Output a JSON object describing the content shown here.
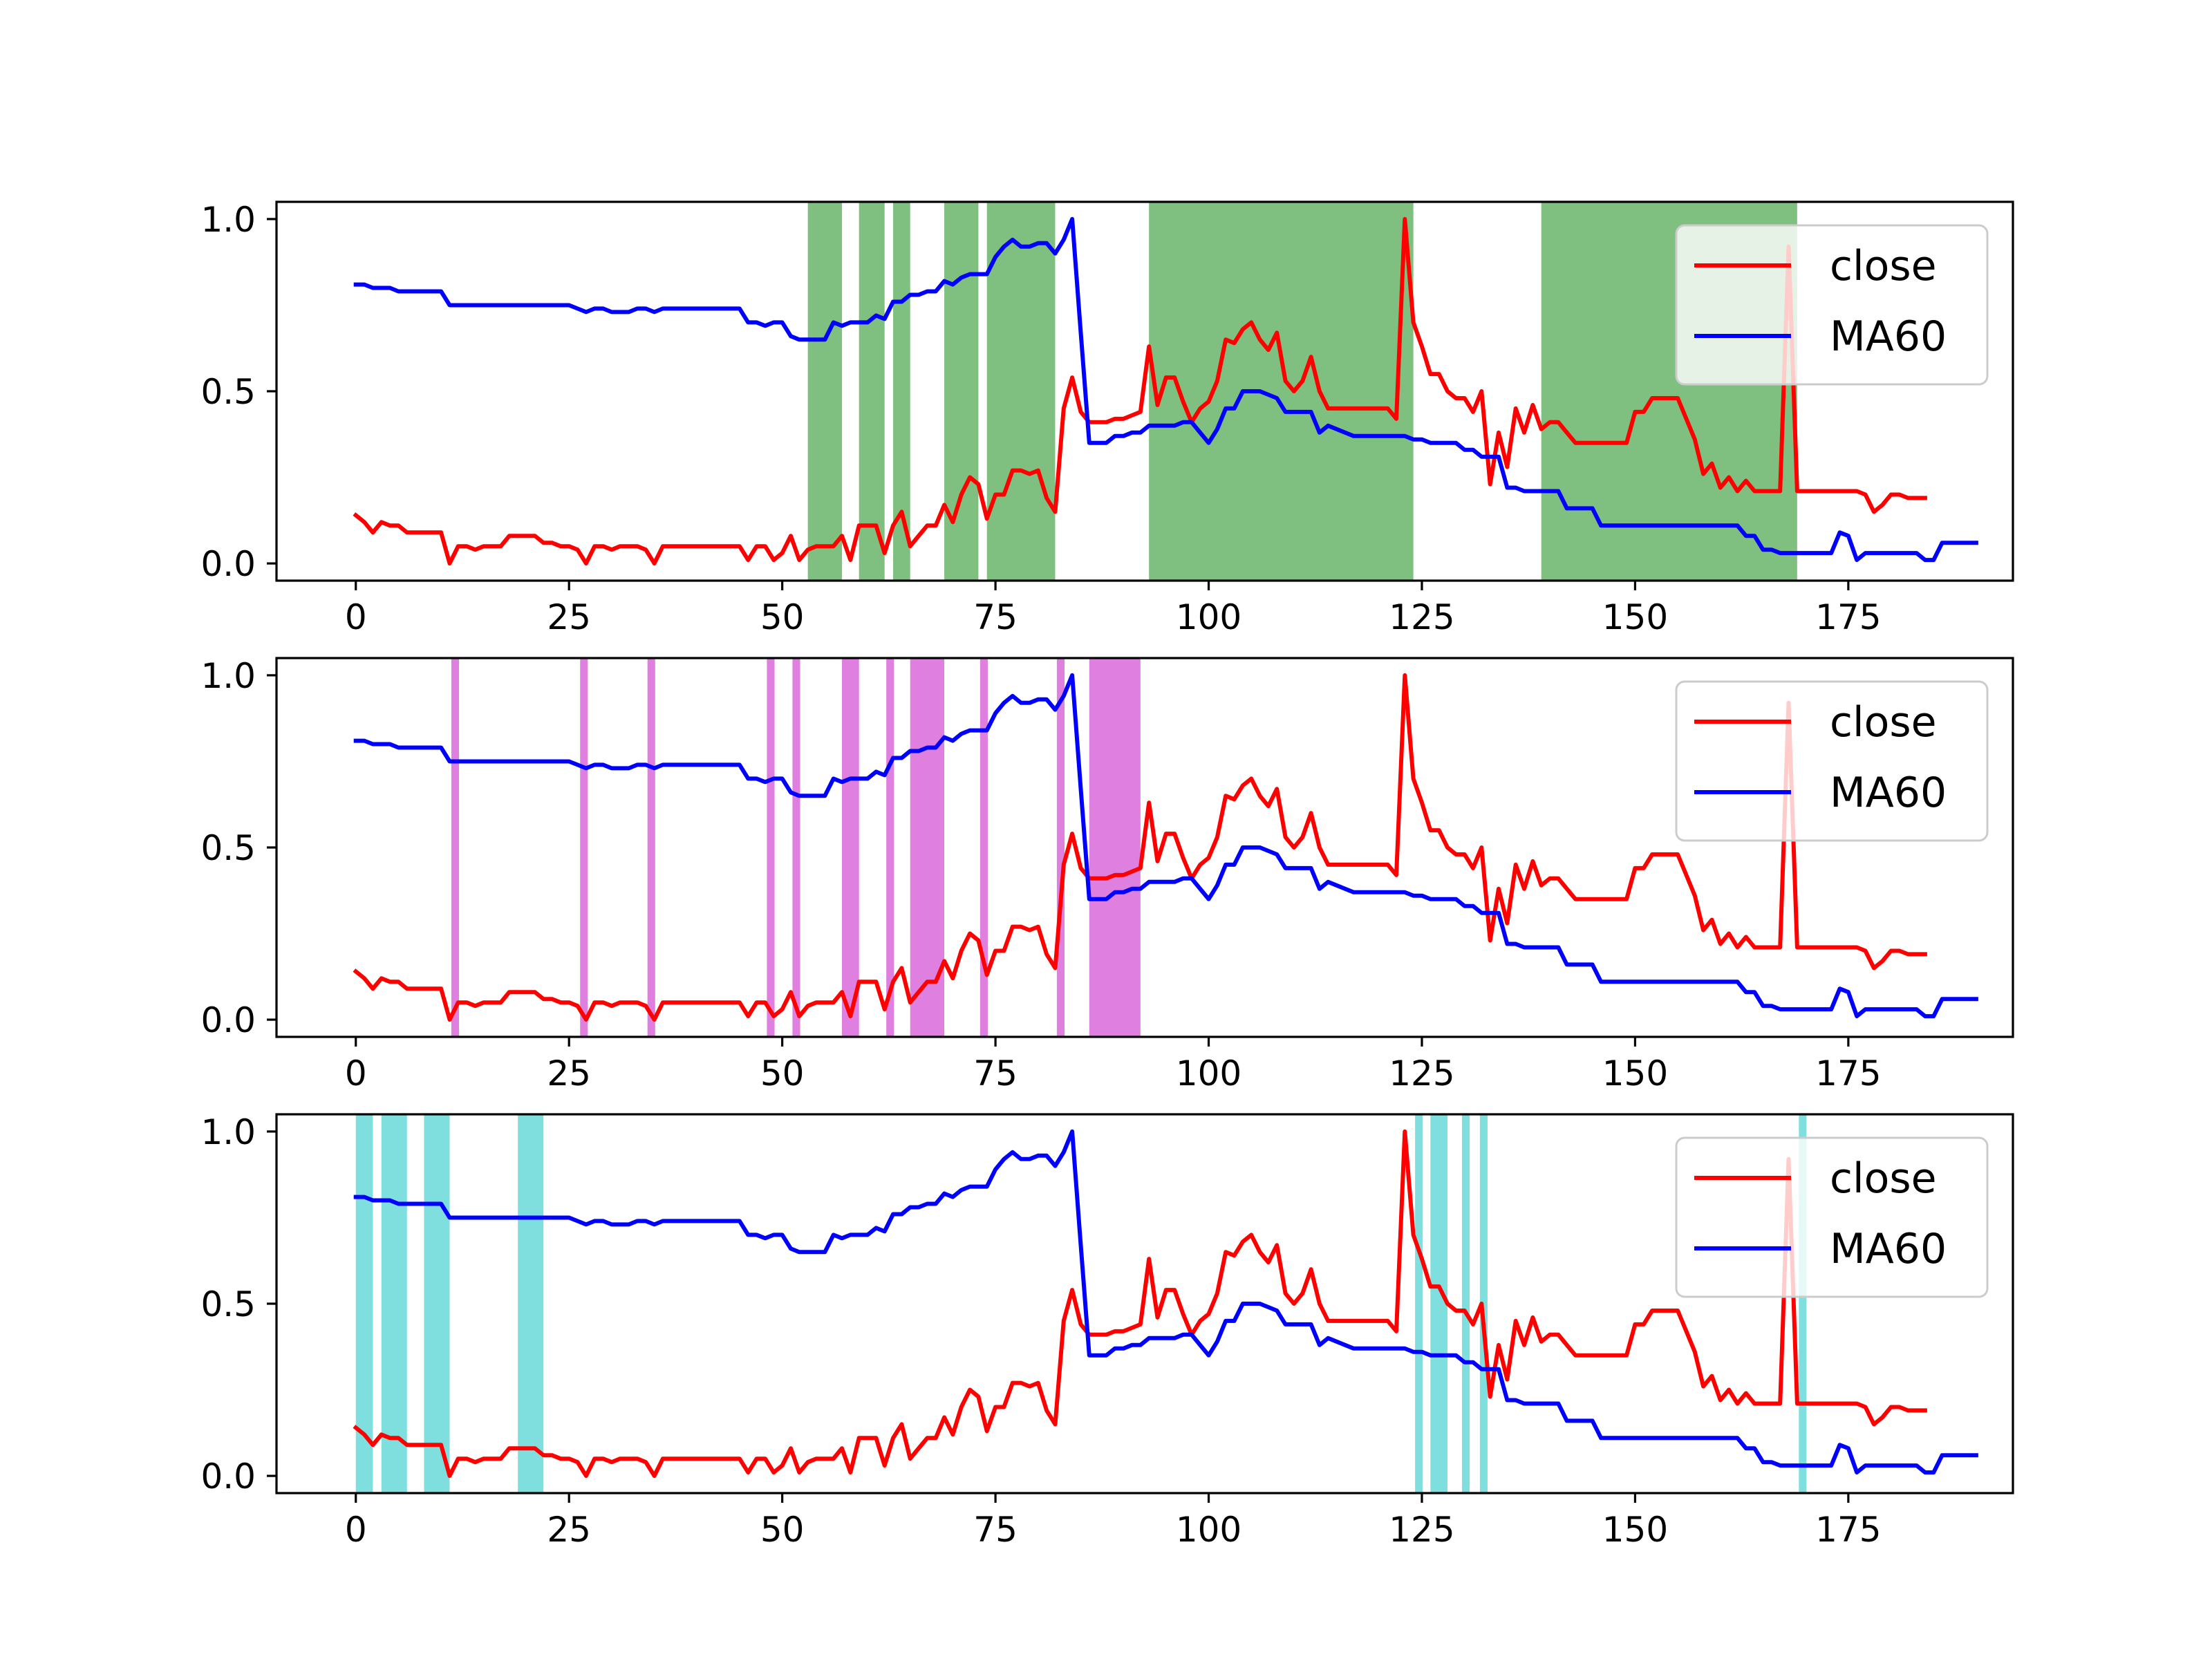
{
  "chart_data": {
    "type": "line",
    "x_ticks": [
      0,
      25,
      50,
      75,
      100,
      125,
      150,
      175
    ],
    "y_ticks": [
      0.0,
      0.5,
      1.0
    ],
    "y_tick_labels": [
      "0.0",
      "0.5",
      "1.0"
    ],
    "xlim": [
      -9.3,
      194.3
    ],
    "ylim": [
      -0.05,
      1.05
    ],
    "grid": false,
    "legend_position": "top-right",
    "series": [
      {
        "name": "close",
        "color": "#ff0000",
        "values": [
          0.14,
          0.12,
          0.09,
          0.12,
          0.11,
          0.11,
          0.09,
          0.09,
          0.09,
          0.09,
          0.09,
          0.0,
          0.05,
          0.05,
          0.04,
          0.05,
          0.05,
          0.05,
          0.08,
          0.08,
          0.08,
          0.08,
          0.06,
          0.06,
          0.05,
          0.05,
          0.04,
          0.0,
          0.05,
          0.05,
          0.04,
          0.05,
          0.05,
          0.05,
          0.04,
          0.0,
          0.05,
          0.05,
          0.05,
          0.05,
          0.05,
          0.05,
          0.05,
          0.05,
          0.05,
          0.05,
          0.01,
          0.05,
          0.05,
          0.01,
          0.03,
          0.08,
          0.01,
          0.04,
          0.05,
          0.05,
          0.05,
          0.08,
          0.01,
          0.11,
          0.11,
          0.11,
          0.03,
          0.11,
          0.15,
          0.05,
          0.08,
          0.11,
          0.11,
          0.17,
          0.12,
          0.2,
          0.25,
          0.23,
          0.13,
          0.2,
          0.2,
          0.27,
          0.27,
          0.26,
          0.27,
          0.19,
          0.15,
          0.45,
          0.54,
          0.44,
          0.41,
          0.41,
          0.41,
          0.42,
          0.42,
          0.43,
          0.44,
          0.63,
          0.46,
          0.54,
          0.54,
          0.47,
          0.41,
          0.45,
          0.47,
          0.53,
          0.65,
          0.64,
          0.68,
          0.7,
          0.65,
          0.62,
          0.67,
          0.53,
          0.5,
          0.53,
          0.6,
          0.5,
          0.45,
          0.45,
          0.45,
          0.45,
          0.45,
          0.45,
          0.45,
          0.45,
          0.42,
          1.0,
          0.7,
          0.63,
          0.55,
          0.55,
          0.5,
          0.48,
          0.48,
          0.44,
          0.5,
          0.23,
          0.38,
          0.28,
          0.45,
          0.38,
          0.46,
          0.39,
          0.41,
          0.41,
          0.38,
          0.35,
          0.35,
          0.35,
          0.35,
          0.35,
          0.35,
          0.35,
          0.44,
          0.44,
          0.48,
          0.48,
          0.48,
          0.48,
          0.42,
          0.36,
          0.26,
          0.29,
          0.22,
          0.25,
          0.21,
          0.24,
          0.21,
          0.21,
          0.21,
          0.21,
          0.92,
          0.21,
          0.21,
          0.21,
          0.21,
          0.21,
          0.21,
          0.21,
          0.21,
          0.2,
          0.15,
          0.17,
          0.2,
          0.2,
          0.19,
          0.19,
          0.19
        ]
      },
      {
        "name": "MA60",
        "color": "#0000ff",
        "values": [
          0.81,
          0.81,
          0.8,
          0.8,
          0.8,
          0.79,
          0.79,
          0.79,
          0.79,
          0.79,
          0.79,
          0.75,
          0.75,
          0.75,
          0.75,
          0.75,
          0.75,
          0.75,
          0.75,
          0.75,
          0.75,
          0.75,
          0.75,
          0.75,
          0.75,
          0.75,
          0.74,
          0.73,
          0.74,
          0.74,
          0.73,
          0.73,
          0.73,
          0.74,
          0.74,
          0.73,
          0.74,
          0.74,
          0.74,
          0.74,
          0.74,
          0.74,
          0.74,
          0.74,
          0.74,
          0.74,
          0.7,
          0.7,
          0.69,
          0.7,
          0.7,
          0.66,
          0.65,
          0.65,
          0.65,
          0.65,
          0.7,
          0.69,
          0.7,
          0.7,
          0.7,
          0.72,
          0.71,
          0.76,
          0.76,
          0.78,
          0.78,
          0.79,
          0.79,
          0.82,
          0.81,
          0.83,
          0.84,
          0.84,
          0.84,
          0.89,
          0.92,
          0.94,
          0.92,
          0.92,
          0.93,
          0.93,
          0.9,
          0.94,
          1.0,
          0.67,
          0.35,
          0.35,
          0.35,
          0.37,
          0.37,
          0.38,
          0.38,
          0.4,
          0.4,
          0.4,
          0.4,
          0.41,
          0.41,
          0.38,
          0.35,
          0.39,
          0.45,
          0.45,
          0.5,
          0.5,
          0.5,
          0.49,
          0.48,
          0.44,
          0.44,
          0.44,
          0.44,
          0.38,
          0.4,
          0.39,
          0.38,
          0.37,
          0.37,
          0.37,
          0.37,
          0.37,
          0.37,
          0.37,
          0.36,
          0.36,
          0.35,
          0.35,
          0.35,
          0.35,
          0.33,
          0.33,
          0.31,
          0.31,
          0.31,
          0.22,
          0.22,
          0.21,
          0.21,
          0.21,
          0.21,
          0.21,
          0.16,
          0.16,
          0.16,
          0.16,
          0.11,
          0.11,
          0.11,
          0.11,
          0.11,
          0.11,
          0.11,
          0.11,
          0.11,
          0.11,
          0.11,
          0.11,
          0.11,
          0.11,
          0.11,
          0.11,
          0.11,
          0.08,
          0.08,
          0.04,
          0.04,
          0.03,
          0.03,
          0.03,
          0.03,
          0.03,
          0.03,
          0.03,
          0.09,
          0.08,
          0.01,
          0.03,
          0.03,
          0.03,
          0.03,
          0.03,
          0.03,
          0.03,
          0.01,
          0.01,
          0.06,
          0.06,
          0.06,
          0.06,
          0.06
        ]
      }
    ],
    "panels": [
      {
        "highlight_color": "#008000",
        "highlight_opacity": 0.5,
        "highlights": [
          [
            53,
            57
          ],
          [
            59,
            62
          ],
          [
            63,
            65
          ],
          [
            69,
            73
          ],
          [
            74,
            82
          ],
          [
            93,
            124
          ],
          [
            139,
            169
          ]
        ]
      },
      {
        "highlight_color": "#bf00bf",
        "highlight_opacity": 0.5,
        "highlights": [
          [
            11.2,
            12.1
          ],
          [
            26.3,
            27.2
          ],
          [
            34.2,
            35.1
          ],
          [
            48.2,
            49.1
          ],
          [
            51.2,
            52.1
          ],
          [
            57,
            59
          ],
          [
            62.2,
            63.1
          ],
          [
            65,
            69
          ],
          [
            73.2,
            74.1
          ],
          [
            82.2,
            83.1
          ],
          [
            86,
            92
          ]
        ]
      },
      {
        "highlight_color": "#00bfbf",
        "highlight_opacity": 0.5,
        "highlights": [
          [
            0,
            2
          ],
          [
            3,
            6
          ],
          [
            8,
            11
          ],
          [
            19,
            22
          ],
          [
            124.2,
            125.1
          ],
          [
            126,
            128
          ],
          [
            129.7,
            130.6
          ],
          [
            131.8,
            132.7
          ],
          [
            169.2,
            170.1
          ]
        ]
      }
    ]
  }
}
